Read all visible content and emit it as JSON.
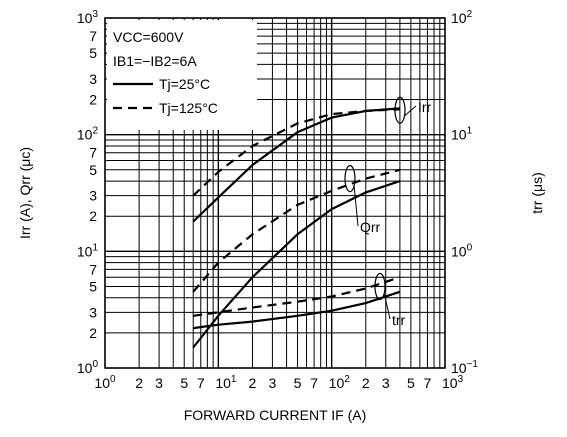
{
  "chart_data": {
    "type": "line",
    "x_scale": "log",
    "y_scale": "log",
    "y2_scale": "log",
    "xlim": [
      1,
      1000
    ],
    "ylim": [
      1,
      1000
    ],
    "y2lim": [
      0.1,
      100
    ],
    "grid": true,
    "legend_placement": "top-left",
    "xlabel": "FORWARD CURRENT   IF (A)",
    "ylabel": "Irr (A), Qrr (μc)",
    "y2label": "trr (μs)",
    "x_ticks": {
      "decades": [
        {
          "base": "10",
          "exp": "0"
        },
        {
          "base": "10",
          "exp": "1"
        },
        {
          "base": "10",
          "exp": "2"
        },
        {
          "base": "10",
          "exp": "3"
        }
      ],
      "minor": [
        "2",
        "3",
        "5",
        "7"
      ]
    },
    "y_ticks": {
      "decades": [
        {
          "base": "10",
          "exp": "0"
        },
        {
          "base": "10",
          "exp": "1"
        },
        {
          "base": "10",
          "exp": "2"
        },
        {
          "base": "10",
          "exp": "3"
        }
      ],
      "minor": [
        "2",
        "3",
        "5",
        "7"
      ]
    },
    "y2_ticks": [
      {
        "base": "10",
        "exp": "−1"
      },
      {
        "base": "10",
        "exp": "0"
      },
      {
        "base": "10",
        "exp": "1"
      },
      {
        "base": "10",
        "exp": "2"
      }
    ],
    "conditions": [
      "VCC=600V",
      "IB1=−IB2=6A"
    ],
    "legend": [
      {
        "name": "Tj=25°C",
        "style": "solid"
      },
      {
        "name": "Tj=125°C",
        "style": "dashed"
      }
    ],
    "curve_labels": [
      "Irr",
      "Qrr",
      "trr"
    ],
    "series": [
      {
        "curve": "Irr",
        "temp": "Tj=25°C",
        "style": "solid",
        "axis": "left",
        "x": [
          6,
          10,
          20,
          50,
          100,
          200,
          400
        ],
        "y": [
          18,
          29,
          55,
          105,
          140,
          160,
          168
        ]
      },
      {
        "curve": "Irr",
        "temp": "Tj=125°C",
        "style": "dashed",
        "axis": "left",
        "x": [
          6,
          10,
          20,
          50,
          100,
          200,
          400
        ],
        "y": [
          30,
          48,
          80,
          125,
          150,
          160,
          165
        ]
      },
      {
        "curve": "Qrr",
        "temp": "Tj=25°C",
        "style": "solid",
        "axis": "left",
        "x": [
          6,
          10,
          20,
          50,
          100,
          200,
          400
        ],
        "y": [
          1.5,
          2.8,
          6,
          14,
          23,
          32,
          40
        ]
      },
      {
        "curve": "Qrr",
        "temp": "Tj=125°C",
        "style": "dashed",
        "axis": "left",
        "x": [
          6,
          10,
          20,
          50,
          100,
          200,
          400
        ],
        "y": [
          4.5,
          8,
          14,
          25,
          33,
          42,
          50
        ]
      },
      {
        "curve": "trr",
        "temp": "Tj=25°C",
        "style": "solid",
        "axis": "right",
        "x": [
          6,
          10,
          20,
          50,
          100,
          200,
          400
        ],
        "y": [
          0.22,
          0.235,
          0.25,
          0.28,
          0.31,
          0.36,
          0.45
        ]
      },
      {
        "curve": "trr",
        "temp": "Tj=125°C",
        "style": "dashed",
        "axis": "right",
        "x": [
          6,
          10,
          20,
          50,
          100,
          200,
          400
        ],
        "y": [
          0.28,
          0.3,
          0.33,
          0.37,
          0.41,
          0.48,
          0.6
        ]
      }
    ]
  }
}
